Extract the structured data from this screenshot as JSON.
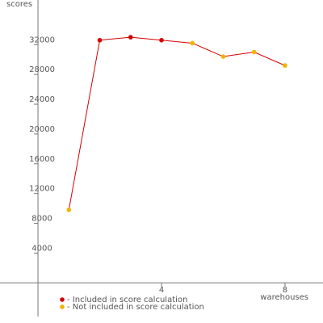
{
  "chart_data": {
    "type": "line",
    "ylabel": "scores",
    "xlabel": "warehouses",
    "x": [
      1,
      2,
      3,
      4,
      5,
      6,
      7,
      8
    ],
    "values": [
      9800,
      32600,
      33000,
      32600,
      32200,
      30400,
      31000,
      29200
    ],
    "point_colors": [
      "#f0b400",
      "#d40000",
      "#d40000",
      "#d40000",
      "#f0b400",
      "#f0b400",
      "#f0b400",
      "#f0b400"
    ],
    "line_color": "#d40000",
    "legend": [
      {
        "name": "- Included in score calculation",
        "color": "#d40000"
      },
      {
        "name": "- Not included in score calculation",
        "color": "#f0b400"
      }
    ],
    "xlim": [
      -1.23,
      9.23
    ],
    "ylim": [
      -5400,
      38000
    ],
    "xticks": [
      4,
      8
    ],
    "yticks": [
      4000,
      8000,
      12000,
      16000,
      20000,
      24000,
      28000,
      32000
    ]
  }
}
